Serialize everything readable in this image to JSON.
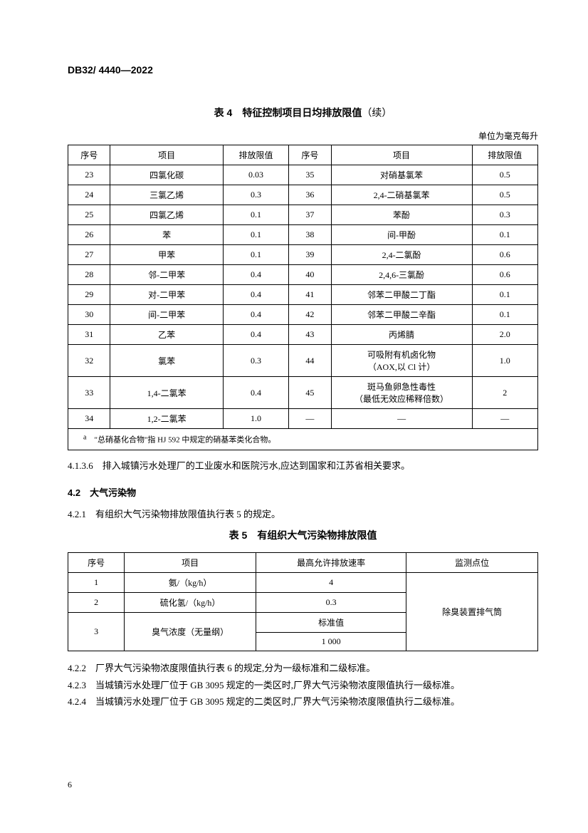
{
  "doc_code": "DB32/ 4440—2022",
  "table4": {
    "title": "表 4　特征控制项目日均排放限值",
    "title_suffix": "（续）",
    "unit": "单位为毫克每升",
    "headers": [
      "序号",
      "项目",
      "排放限值",
      "序号",
      "项目",
      "排放限值"
    ],
    "rows": [
      [
        "23",
        "四氯化碳",
        "0.03",
        "35",
        "对硝基氯苯",
        "0.5"
      ],
      [
        "24",
        "三氯乙烯",
        "0.3",
        "36",
        "2,4-二硝基氯苯",
        "0.5"
      ],
      [
        "25",
        "四氯乙烯",
        "0.1",
        "37",
        "苯酚",
        "0.3"
      ],
      [
        "26",
        "苯",
        "0.1",
        "38",
        "间-甲酚",
        "0.1"
      ],
      [
        "27",
        "甲苯",
        "0.1",
        "39",
        "2,4-二氯酚",
        "0.6"
      ],
      [
        "28",
        "邻-二甲苯",
        "0.4",
        "40",
        "2,4,6-三氯酚",
        "0.6"
      ],
      [
        "29",
        "对-二甲苯",
        "0.4",
        "41",
        "邻苯二甲酸二丁酯",
        "0.1"
      ],
      [
        "30",
        "间-二甲苯",
        "0.4",
        "42",
        "邻苯二甲酸二辛酯",
        "0.1"
      ],
      [
        "31",
        "乙苯",
        "0.4",
        "43",
        "丙烯腈",
        "2.0"
      ],
      [
        "32",
        "氯苯",
        "0.3",
        "44",
        "可吸附有机卤化物\n（AOX,以 Cl 计）",
        "1.0"
      ],
      [
        "33",
        "1,4-二氯苯",
        "0.4",
        "45",
        "斑马鱼卵急性毒性\n（最低无效应稀释倍数）",
        "2"
      ],
      [
        "34",
        "1,2-二氯苯",
        "1.0",
        "—",
        "—",
        "—"
      ]
    ],
    "footnote_marker": "a",
    "footnote": "　\"总硝基化合物\"指 HJ 592 中规定的硝基苯类化合物。"
  },
  "clause_4136": {
    "num": "4.1.3.6",
    "text": "　排入城镇污水处理厂的工业废水和医院污水,应达到国家和江苏省相关要求。"
  },
  "section42": {
    "num": "4.2",
    "title": "　大气污染物"
  },
  "clause_421": {
    "num": "4.2.1",
    "text": "　有组织大气污染物排放限值执行表 5 的规定。"
  },
  "table5": {
    "title": "表 5　有组织大气污染物排放限值",
    "headers": [
      "序号",
      "项目",
      "最高允许排放速率",
      "监测点位"
    ],
    "row1": [
      "1",
      "氨/（kg/h）",
      "4"
    ],
    "row2": [
      "2",
      "硫化氢/（kg/h）",
      "0.3"
    ],
    "row3_seq": "3",
    "row3_item": "臭气浓度（无量纲）",
    "row3_label": "标准值",
    "row3_val": "1 000",
    "monitor": "除臭装置排气筒"
  },
  "clause_422": {
    "num": "4.2.2",
    "text": "　厂界大气污染物浓度限值执行表 6 的规定,分为一级标准和二级标准。"
  },
  "clause_423": {
    "num": "4.2.3",
    "text": "　当城镇污水处理厂位于 GB 3095 规定的一类区时,厂界大气污染物浓度限值执行一级标准。"
  },
  "clause_424": {
    "num": "4.2.4",
    "text": "　当城镇污水处理厂位于 GB 3095 规定的二类区时,厂界大气污染物浓度限值执行二级标准。"
  },
  "page_number": "6",
  "col_widths_t4": [
    "9%",
    "24%",
    "14%",
    "9%",
    "30%",
    "14%"
  ],
  "col_widths_t5": [
    "12%",
    "28%",
    "32%",
    "28%"
  ]
}
